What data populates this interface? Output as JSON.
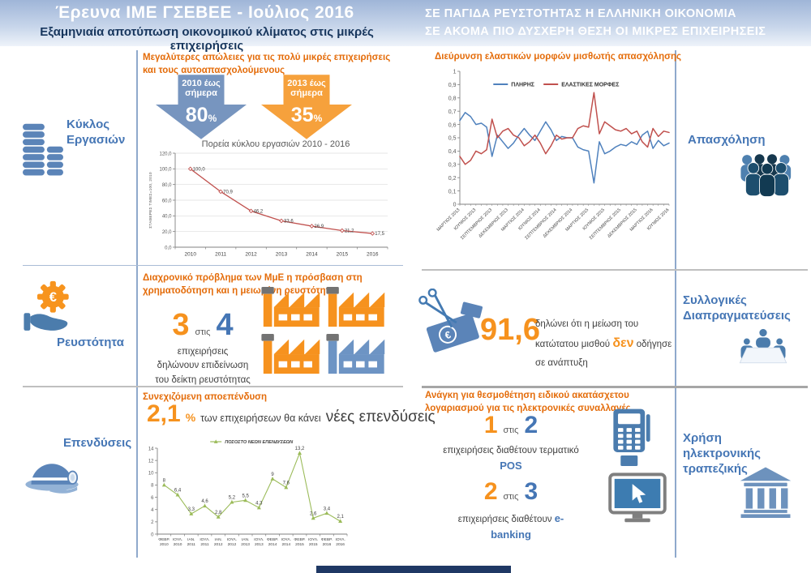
{
  "header": {
    "left_title": "Έρευνα ΙΜΕ ΓΣΕΒΕΕ - Ιούλιος 2016",
    "left_subtitle": "Εξαμηνιαία αποτύπωση οικονομικού κλίματος στις μικρές επιχειρήσεις",
    "right_line1": "ΣΕ ΠΑΓΙΔΑ ΡΕΥΣΤΟΤΗΤΑΣ Η ΕΛΛΗΝΙΚΗ ΟΙΚΟΝΟΜΙΑ",
    "right_line2": "ΣΕ ΑΚΟΜΑ ΠΙΟ ΔΥΣΧΕΡΗ ΘΕΣΗ ΟΙ ΜΙΚΡΕΣ ΕΠΙΧΕΙΡΗΣΕΙΣ"
  },
  "sidebar_left": {
    "turnover": "Κύκλος Εργασιών",
    "liquidity": "Ρευστότητα",
    "investments": "Επενδύσεις"
  },
  "sidebar_right": {
    "employment": "Απασχόληση",
    "collective": "Συλλογικές Διαπραγματεύσεις",
    "ebanking": "Χρήση ηλεκτρονικής τραπεζικής"
  },
  "turnover": {
    "heading": "Μεγαλύτερες απώλειες για τις πολύ μικρές επιχειρήσεις και τους αυτοαπασχολούμενους",
    "arrow1_period": "2010 έως σήμερα",
    "arrow1_value": "80",
    "arrow1_unit": "%",
    "arrow2_period": "2013 έως σήμερα",
    "arrow2_value": "35",
    "arrow2_unit": "%"
  },
  "liquidity": {
    "heading": "Διαχρονικό πρόβλημα των ΜμΕ η πρόσβαση στη χρηματοδότηση και η μειωμένη ρευστότητα",
    "num1": "3",
    "of": "στις",
    "num2": "4",
    "caption1": "επιχειρήσεις",
    "caption2": "δηλώνουν επιδείνωση",
    "caption3": "του δείκτη ρευστότητας"
  },
  "investments": {
    "heading": "Συνεχιζόμενη αποεπένδυση",
    "value": "2,1",
    "unit": "%",
    "caption": "των επιχειρήσεων θα κάνει",
    "caption_big": "νέες επενδύσεις"
  },
  "wage": {
    "value": "91,6",
    "text_before": "δηλώνει ότι η μείωση του κατώτατου μισθού",
    "highlight": "δεν",
    "text_after": "οδήγησε σε ανάπτυξη"
  },
  "etransactions": {
    "heading": "Ανάγκη για θεσμοθέτηση ειδικού ακατάσχετου λογαριασμού για τις ηλεκτρονικές συναλλαγές",
    "pos_num1": "1",
    "pos_of": "στις",
    "pos_num2": "2",
    "pos_caption": "επιχειρήσεις διαθέτουν τερματικό",
    "pos_highlight": "POS",
    "eb_num1": "2",
    "eb_of": "στις",
    "eb_num2": "3",
    "eb_caption": "επιχειρήσεις διαθέτουν",
    "eb_highlight": "e-banking"
  },
  "icons": {
    "turnover": "coins-icon",
    "liquidity": "euro-gear-hand-icon",
    "investments": "miner-helmet-icon",
    "employment": "people-group-icon",
    "collective": "meeting-table-icon",
    "wage": "scissors-euro-icon",
    "pos": "pos-terminal-icon",
    "ebanking_screen": "monitor-cursor-icon",
    "ebanking_sidebar": "bank-icon",
    "arrow1": "down-arrow-blue",
    "arrow2": "down-arrow-orange",
    "factories": "factory-icon"
  },
  "colors": {
    "orange": "#F6921E",
    "orange_dark": "#E46C0A",
    "blue": "#4576B5",
    "slate": "#5B84B8",
    "navy": "#17365D",
    "arrow_blue": "#7795BF",
    "arrow_orange": "#F6A13C",
    "factory_orange": "#F6921E",
    "factory_blue": "#6D94C4"
  },
  "chart_data": [
    {
      "type": "line",
      "title": "Πορεία κύκλου εργασιών 2010 - 2016",
      "ylabel": "ΣΤΑΘΕΡΕΣ ΤΙΜΕΣ=100, 2010",
      "categories": [
        "2010",
        "2011",
        "2012",
        "2013",
        "2014",
        "2015",
        "2016"
      ],
      "ylim": [
        0,
        120
      ],
      "ytick_labels": [
        "0,0",
        "20,0",
        "40,0",
        "60,0",
        "80,0",
        "100,0",
        "120,0"
      ],
      "grid": true,
      "legend_position": "none",
      "series": [
        {
          "name": "Κύκλος εργασιών",
          "color": "#C0504D",
          "values": [
            100.0,
            70.9,
            46.2,
            33.6,
            26.9,
            21.2,
            17.5
          ],
          "point_labels": [
            "100,0",
            "70,9",
            "46,2",
            "33,6",
            "26,9",
            "21,2",
            "17,5"
          ]
        }
      ]
    },
    {
      "type": "line",
      "title": "Διεύρυνση ελαστικών μορφών μισθωτής απασχόλησης",
      "x_labels": [
        "ΜΑΡΤΙΟΣ 2013",
        "ΙΟΥΝΙΟΣ 2013",
        "ΣΕΠΤΕΜΒΡΙΟΣ 2013",
        "ΔΕΚΕΜΒΡΙΟΣ 2013",
        "ΜΑΡΤΙΟΣ 2014",
        "ΙΟΥΝΙΟΣ 2014",
        "ΣΕΠΤΕΜΒΡΙΟΣ 2014",
        "ΔΕΚΕΜΒΡΙΟΣ 2014",
        "ΜΑΡΤΙΟΣ 2015",
        "ΙΟΥΝΙΟΣ 2015",
        "ΣΕΠΤΕΜΒΡΙΟΣ 2015",
        "ΔΕΚΕΜΒΡΙΟΣ 2015",
        "ΜΑΡΤΙΟΣ 2016",
        "ΙΟΥΝΙΟΣ 2016"
      ],
      "ylim": [
        0,
        1
      ],
      "ytick_labels": [
        "0",
        "0,1",
        "0,2",
        "0,3",
        "0,4",
        "0,5",
        "0,6",
        "0,7",
        "0,8",
        "0,9",
        "1"
      ],
      "grid": false,
      "legend_position": "top-inside",
      "series": [
        {
          "name": "ΠΛΗΡΗΣ",
          "color": "#4F81BD",
          "values": [
            0.63,
            0.69,
            0.66,
            0.6,
            0.61,
            0.58,
            0.36,
            0.52,
            0.47,
            0.42,
            0.46,
            0.52,
            0.57,
            0.52,
            0.48,
            0.55,
            0.62,
            0.56,
            0.48,
            0.51,
            0.5,
            0.5,
            0.43,
            0.41,
            0.4,
            0.16,
            0.47,
            0.38,
            0.4,
            0.43,
            0.45,
            0.44,
            0.47,
            0.45,
            0.52,
            0.55,
            0.42,
            0.48,
            0.44,
            0.46
          ]
        },
        {
          "name": "ΕΛΑΣΤΙΚΕΣ ΜΟΡΦΕΣ",
          "color": "#C0504D",
          "values": [
            0.36,
            0.3,
            0.33,
            0.4,
            0.38,
            0.41,
            0.64,
            0.5,
            0.55,
            0.57,
            0.52,
            0.5,
            0.44,
            0.47,
            0.52,
            0.46,
            0.38,
            0.44,
            0.52,
            0.49,
            0.5,
            0.5,
            0.57,
            0.59,
            0.58,
            0.84,
            0.53,
            0.62,
            0.59,
            0.56,
            0.55,
            0.57,
            0.53,
            0.55,
            0.47,
            0.43,
            0.57,
            0.51,
            0.55,
            0.54
          ]
        }
      ]
    },
    {
      "type": "line",
      "title": "ΠΟΣΟΣΤΟ ΝΕΩΝ ΕΠΕΝΔΥΣΕΩΝ",
      "categories": [
        "ΦΕΒΡ. 2010",
        "ΙΟΥΛ. 2010",
        "ΙΑΝ. 2011",
        "ΙΟΥΛ. 2011",
        "ΙΑΝ. 2012",
        "ΙΟΥΛ. 2012",
        "ΙΑΝ. 2013",
        "ΙΟΥΛ. 2013",
        "ΦΕΒΡ. 2014",
        "ΙΟΥΛ. 2014",
        "ΦΕΒΡ. 2015",
        "ΙΟΥΛ. 2015",
        "ΦΕΒΡ. 2016",
        "ΙΟΥΛ. 2016"
      ],
      "ylim": [
        0,
        14
      ],
      "ytick_labels": [
        "0",
        "2",
        "4",
        "6",
        "8",
        "10",
        "12",
        "14"
      ],
      "grid": false,
      "legend_position": "top",
      "series": [
        {
          "name": "ΠΟΣΟΣΤΟ ΝΕΩΝ ΕΠΕΝΔΥΣΕΩΝ",
          "color": "#9BBB59",
          "values": [
            8,
            6.4,
            3.3,
            4.6,
            2.8,
            5.2,
            5.5,
            4.3,
            9,
            7.6,
            13.2,
            2.6,
            3.4,
            2.1
          ],
          "point_labels": [
            "8",
            "6,4",
            "3,3",
            "4,6",
            "2,8",
            "5,2",
            "5,5",
            "4,3",
            "9",
            "7,6",
            "13,2",
            "2,6",
            "3,4",
            "2,1"
          ]
        }
      ]
    }
  ]
}
